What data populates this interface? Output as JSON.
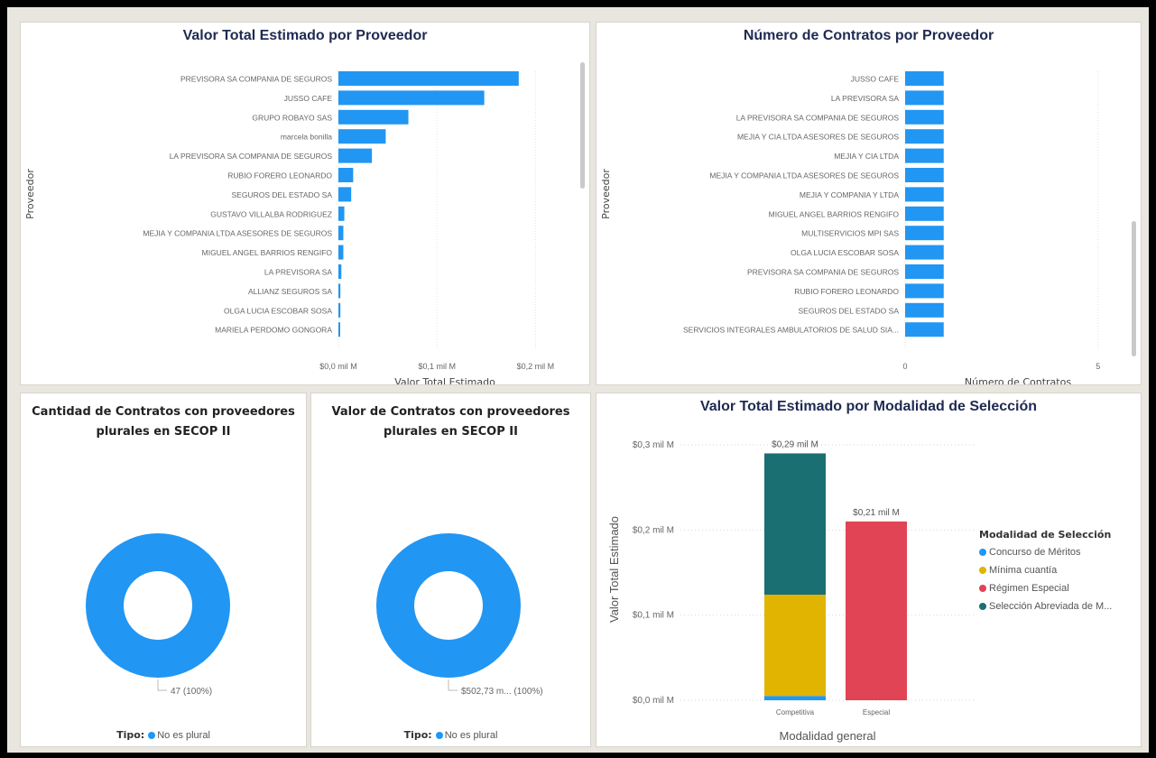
{
  "colors": {
    "bar": "#2196f3",
    "title": "#1f2a52",
    "concurso": "#2196f3",
    "minima": "#e0b400",
    "regimen": "#e04455",
    "seleccion": "#1a6f73"
  },
  "chart_data": [
    {
      "type": "bar",
      "orientation": "horizontal",
      "title": "Valor Total Estimado por Proveedor",
      "xlabel": "Valor Total Estimado",
      "ylabel": "Proveedor",
      "xticks": [
        "$0,0 mil M",
        "$0,1 mil M",
        "$0,2 mil M"
      ],
      "xlim": [
        0,
        0.25
      ],
      "categories": [
        "PREVISORA SA COMPANIA DE SEGUROS",
        "JUSSO CAFE",
        "GRUPO ROBAYO SAS",
        "marcela bonilla",
        "LA PREVISORA SA COMPANIA DE SEGUROS",
        "RUBIO FORERO LEONARDO",
        "SEGUROS DEL ESTADO SA",
        "GUSTAVO VILLALBA RODRIGUEZ",
        "MEJIA Y COMPANIA LTDA ASESORES DE SEGUROS",
        "MIGUEL ANGEL BARRIOS RENGIFO",
        "LA PREVISORA SA",
        "ALLIANZ SEGUROS SA",
        "OLGA LUCIA ESCOBAR SOSA",
        "MARIELA PERDOMO GONGORA"
      ],
      "values": [
        0.183,
        0.148,
        0.071,
        0.048,
        0.034,
        0.015,
        0.013,
        0.006,
        0.005,
        0.005,
        0.003,
        0.002,
        0.002,
        0.001
      ]
    },
    {
      "type": "bar",
      "orientation": "horizontal",
      "title": "Número de Contratos por Proveedor",
      "xlabel": "Número de Contratos",
      "ylabel": "Proveedor",
      "xticks": [
        "0",
        "5"
      ],
      "xlim": [
        0,
        5.8
      ],
      "categories": [
        "JUSSO CAFE",
        "LA PREVISORA SA",
        "LA PREVISORA SA COMPANIA DE SEGUROS",
        "MEJIA Y CIA LTDA ASESORES DE SEGUROS",
        "MEJIA Y CIA LTDA",
        "MEJIA Y COMPANIA LTDA ASESORES DE SEGUROS",
        "MEJIA Y COMPANIA Y LTDA",
        "MIGUEL ANGEL BARRIOS RENGIFO",
        "MULTISERVICIOS MPI SAS",
        "OLGA LUCIA ESCOBAR SOSA",
        "PREVISORA SA COMPANIA DE SEGUROS",
        "RUBIO FORERO LEONARDO",
        "SEGUROS DEL ESTADO SA",
        "SERVICIOS INTEGRALES AMBULATORIOS DE SALUD SIA..."
      ],
      "values": [
        1,
        1,
        1,
        1,
        1,
        1,
        1,
        1,
        1,
        1,
        1,
        1,
        1,
        1
      ]
    },
    {
      "type": "pie",
      "donut": true,
      "title": "Cantidad de Contratos con proveedores plurales en SECOP II",
      "categories": [
        "No es plural"
      ],
      "values": [
        47
      ],
      "data_label": "47 (100%)"
    },
    {
      "type": "pie",
      "donut": true,
      "title": "Valor de Contratos con proveedores plurales en SECOP II",
      "categories": [
        "No es plural"
      ],
      "values": [
        502.73
      ],
      "data_label": "$502,73 m... (100%)"
    },
    {
      "type": "bar",
      "stacked": true,
      "title": "Valor Total Estimado por Modalidad de Selección",
      "xlabel": "Modalidad general",
      "ylabel": "Valor Total Estimado",
      "categories": [
        "Competitiva",
        "Especial"
      ],
      "ylim": [
        0,
        0.3
      ],
      "yticks": [
        "$0,0 mil M",
        "$0,1 mil M",
        "$0,2 mil M",
        "$0,3 mil M"
      ],
      "series": [
        {
          "name": "Concurso de Méritos",
          "values": [
            0.005,
            0
          ]
        },
        {
          "name": "Mínima cuantía",
          "values": [
            0.119,
            0
          ]
        },
        {
          "name": "Régimen Especial",
          "values": [
            0,
            0.21
          ]
        },
        {
          "name": "Selección Abreviada de M...",
          "values": [
            0.166,
            0
          ]
        }
      ],
      "totals": [
        "$0,29 mil M",
        "$0,21 mil M"
      ],
      "legend_title": "Modalidad de Selección",
      "legend_position": "right"
    }
  ],
  "donut_legend": {
    "label": "Tipo:",
    "item": "No es plural"
  }
}
